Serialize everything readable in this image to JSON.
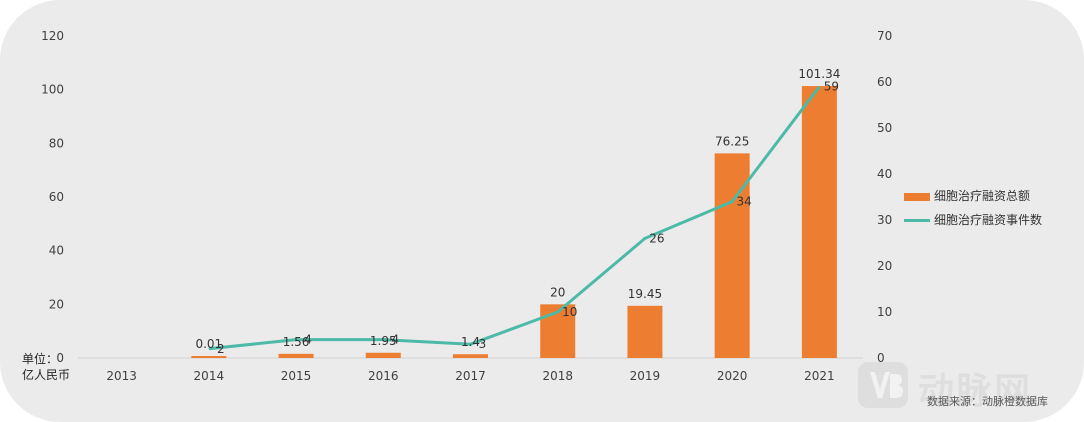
{
  "chart_data": {
    "type": "bar+line",
    "categories": [
      "2013",
      "2014",
      "2015",
      "2016",
      "2017",
      "2018",
      "2019",
      "2020",
      "2021"
    ],
    "series": [
      {
        "name": "细胞治疗融资总额",
        "type": "bar",
        "axis": "left",
        "values": [
          0,
          0.01,
          1.56,
          1.95,
          1.4,
          20,
          19.45,
          76.25,
          101.34
        ],
        "labels": [
          "",
          "0.01",
          "1.56",
          "1.95",
          "1.4",
          "20",
          "19.45",
          "76.25",
          "101.34"
        ],
        "color": "#ed7d31"
      },
      {
        "name": "细胞治疗融资事件数",
        "type": "line",
        "axis": "right",
        "values": [
          null,
          2,
          4,
          4,
          3,
          10,
          26,
          34,
          59
        ],
        "labels": [
          "",
          "2",
          "4",
          "4",
          "3",
          "10",
          "26",
          "34",
          "59"
        ],
        "color": "#4cbaa6"
      }
    ],
    "y_left": {
      "min": 0,
      "max": 120,
      "ticks": [
        "0",
        "20",
        "40",
        "60",
        "80",
        "100",
        "120"
      ]
    },
    "y_right": {
      "min": 0,
      "max": 70,
      "ticks": [
        "0",
        "10",
        "20",
        "30",
        "40",
        "50",
        "60",
        "70"
      ]
    },
    "unit_label": [
      "单位：",
      "亿人民币"
    ],
    "legend_position": "right"
  },
  "source": "数据来源：动脉橙数据库",
  "watermark": {
    "text": "动脉网"
  }
}
